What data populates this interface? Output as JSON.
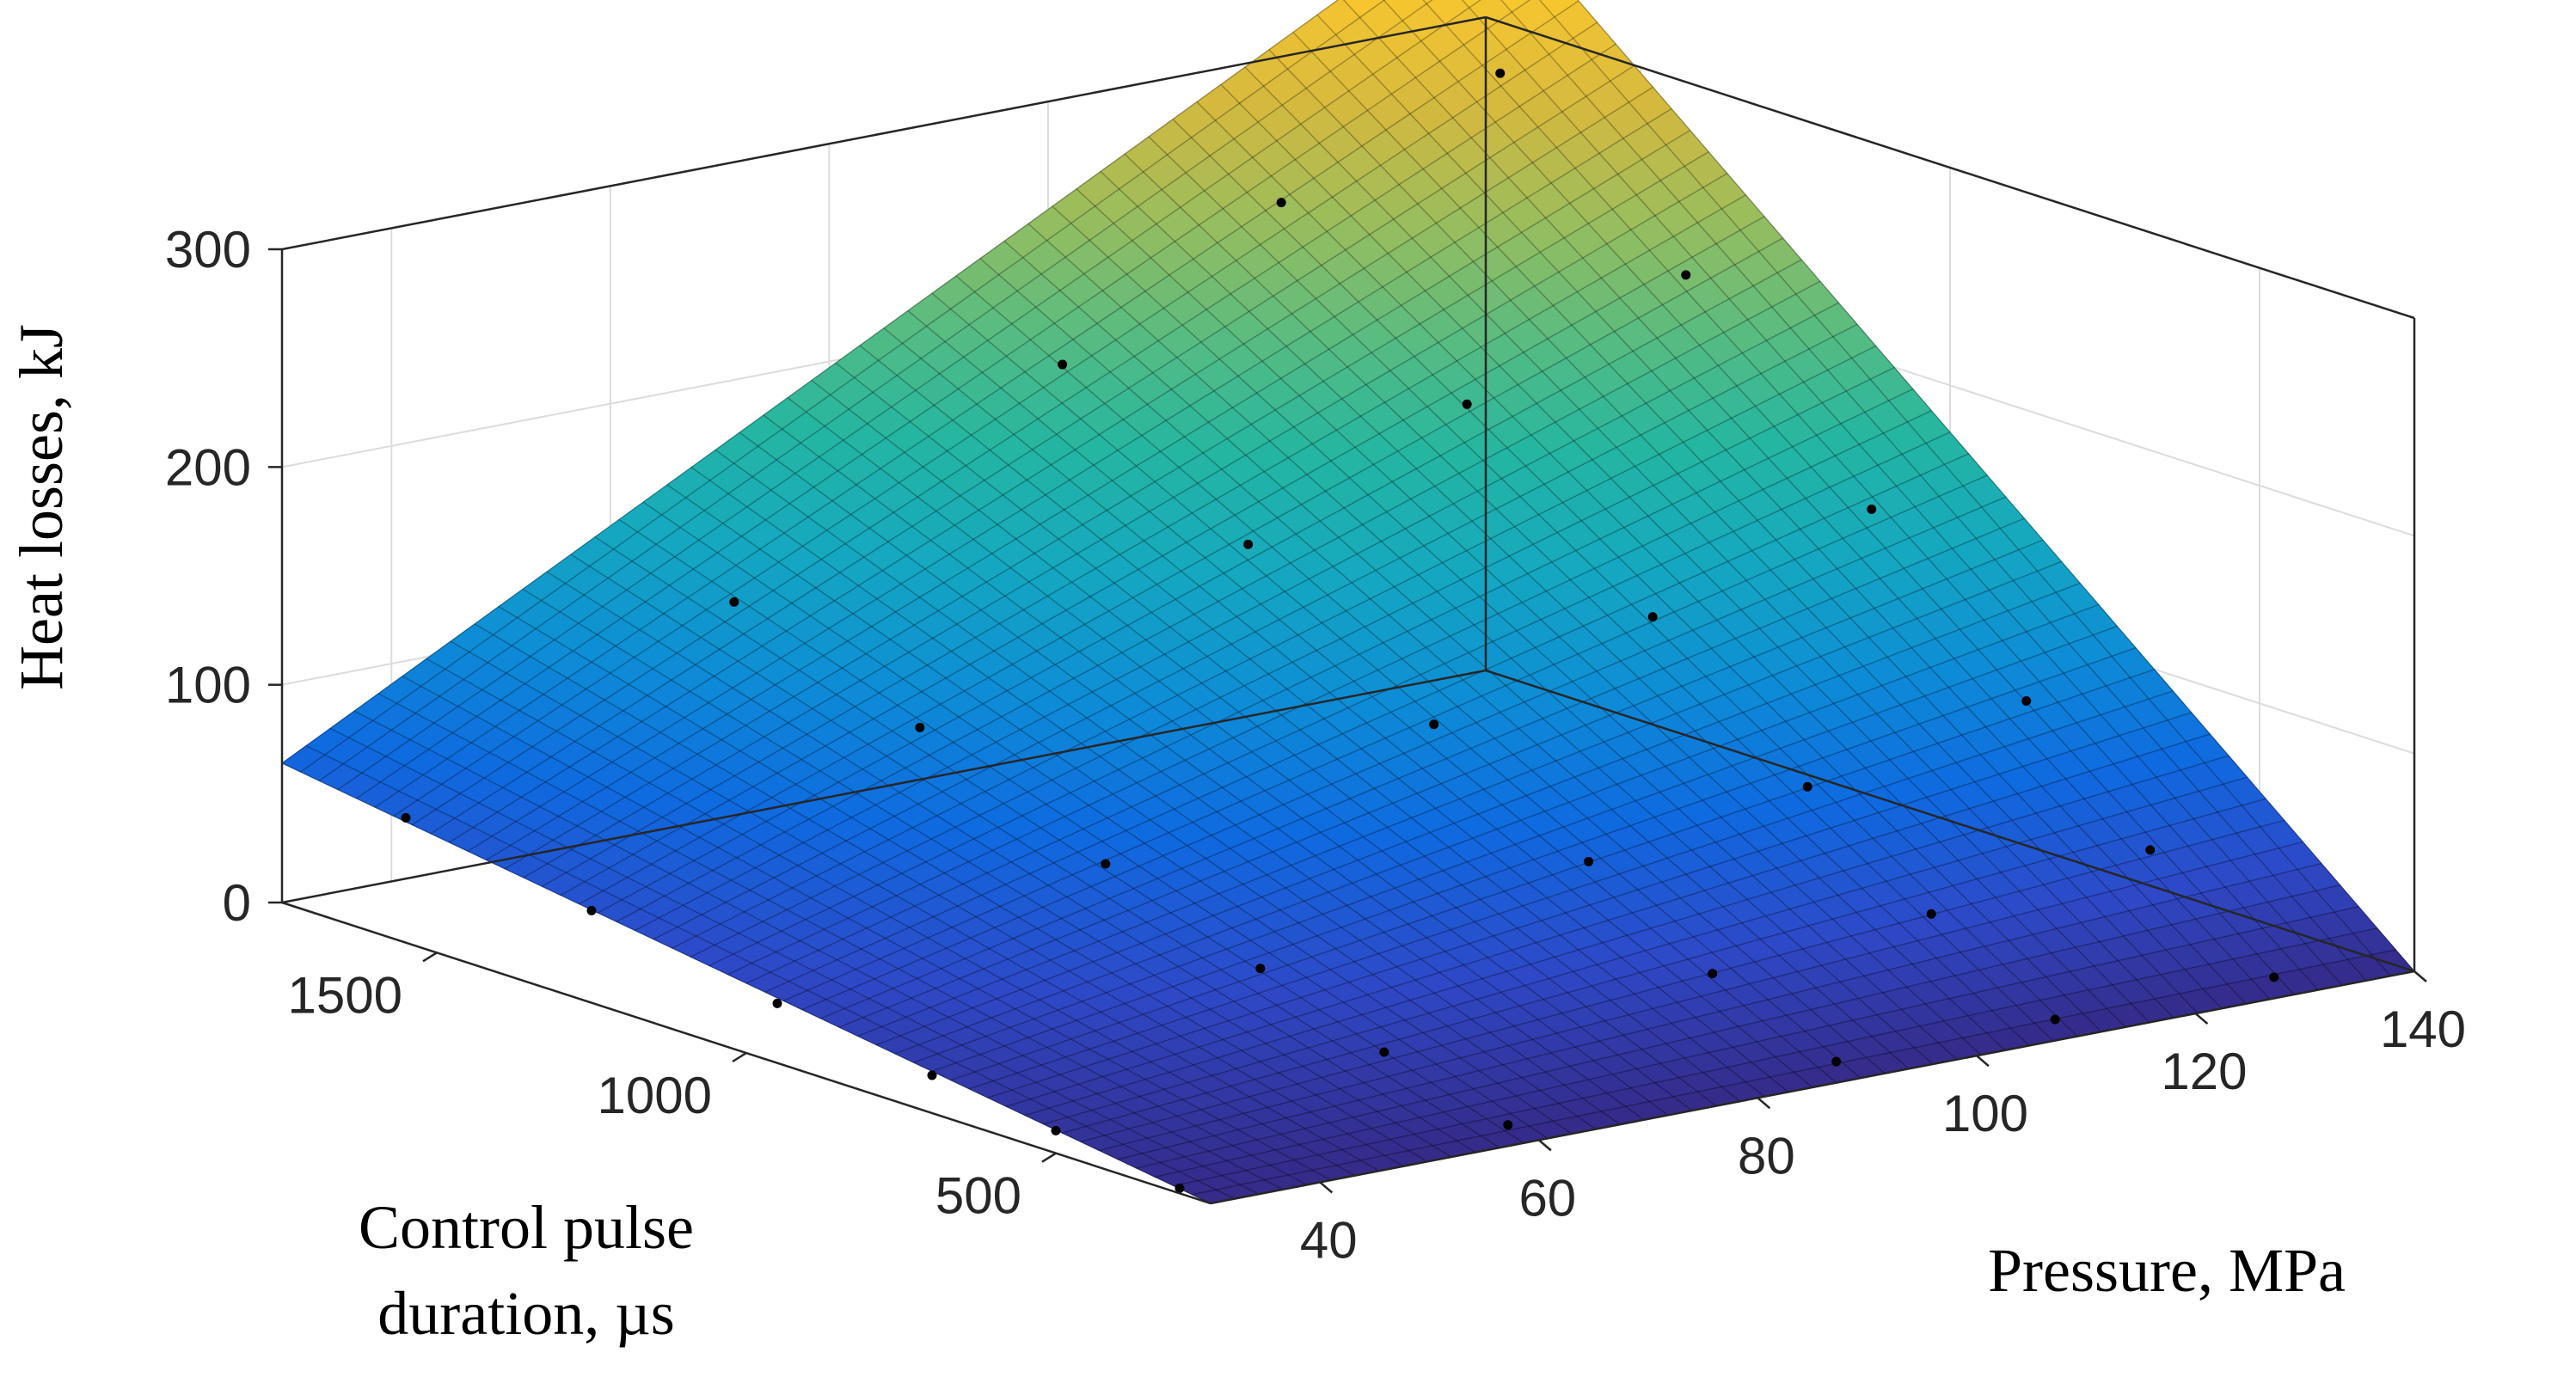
{
  "chart_data": {
    "type": "surface",
    "title": "",
    "xlabel": "Pressure, MPa",
    "ylabel_lines": [
      "Control pulse",
      "duration, µs"
    ],
    "zlabel": "Heat losses, kJ",
    "x_range": [
      30,
      140
    ],
    "y_range": [
      250,
      1750
    ],
    "z_range": [
      0,
      300
    ],
    "x_ticks": [
      "40",
      "60",
      "80",
      "100",
      "120",
      "140"
    ],
    "y_ticks": [
      "500",
      "1000",
      "1500"
    ],
    "z_ticks": [
      "0",
      "100",
      "200",
      "300"
    ],
    "grid": true,
    "colormap": "parula",
    "surface_corners": {
      "x30_y250": 0,
      "x140_y250": 0,
      "x30_y1750": 64,
      "x140_y1750": 357
    },
    "points": [
      {
        "x": 30,
        "y": 300,
        "z": 0
      },
      {
        "x": 30,
        "y": 500,
        "z": 8
      },
      {
        "x": 30,
        "y": 700,
        "z": 15
      },
      {
        "x": 30,
        "y": 950,
        "z": 25
      },
      {
        "x": 30,
        "y": 1250,
        "z": 40
      },
      {
        "x": 30,
        "y": 1550,
        "z": 55
      },
      {
        "x": 60,
        "y": 300,
        "z": 0
      },
      {
        "x": 60,
        "y": 500,
        "z": 15
      },
      {
        "x": 60,
        "y": 700,
        "z": 35
      },
      {
        "x": 60,
        "y": 950,
        "z": 60
      },
      {
        "x": 60,
        "y": 1250,
        "z": 95
      },
      {
        "x": 60,
        "y": 1550,
        "z": 125
      },
      {
        "x": 90,
        "y": 300,
        "z": 0
      },
      {
        "x": 90,
        "y": 500,
        "z": 22
      },
      {
        "x": 90,
        "y": 700,
        "z": 55
      },
      {
        "x": 90,
        "y": 950,
        "z": 95
      },
      {
        "x": 90,
        "y": 1250,
        "z": 150
      },
      {
        "x": 90,
        "y": 1550,
        "z": 205
      },
      {
        "x": 110,
        "y": 300,
        "z": 0
      },
      {
        "x": 110,
        "y": 500,
        "z": 30
      },
      {
        "x": 110,
        "y": 700,
        "z": 70
      },
      {
        "x": 110,
        "y": 950,
        "z": 125
      },
      {
        "x": 110,
        "y": 1250,
        "z": 195
      },
      {
        "x": 110,
        "y": 1550,
        "z": 260
      },
      {
        "x": 130,
        "y": 300,
        "z": 0
      },
      {
        "x": 130,
        "y": 500,
        "z": 40
      },
      {
        "x": 130,
        "y": 700,
        "z": 90
      },
      {
        "x": 130,
        "y": 950,
        "z": 155
      },
      {
        "x": 130,
        "y": 1250,
        "z": 235
      },
      {
        "x": 130,
        "y": 1550,
        "z": 300
      }
    ]
  },
  "colors": {
    "parula": [
      "#352a87",
      "#2e49c8",
      "#0f6ae0",
      "#0e8dd6",
      "#15a8c0",
      "#25b6a1",
      "#5bbc7f",
      "#9abd5d",
      "#d4b93f",
      "#f6c530",
      "#f9ee18"
    ],
    "point": "#000000",
    "axis": "#262626"
  }
}
